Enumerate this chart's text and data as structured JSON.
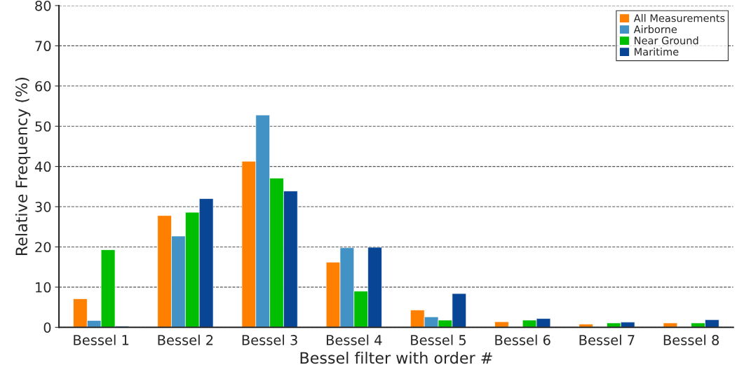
{
  "chart_data": {
    "type": "bar",
    "xlabel": "Bessel filter with order #",
    "ylabel": "Relative Frequency (%)",
    "categories": [
      "Bessel 1",
      "Bessel 2",
      "Bessel 3",
      "Bessel 4",
      "Bessel 5",
      "Bessel 6",
      "Bessel 7",
      "Bessel 8"
    ],
    "series": [
      {
        "name": "All Measurements",
        "color": "#ff8000",
        "values": [
          7.1,
          27.8,
          41.3,
          16.2,
          4.3,
          1.4,
          0.8,
          1.1
        ]
      },
      {
        "name": "Airborne",
        "color": "#4292c6",
        "values": [
          1.7,
          22.7,
          52.8,
          19.8,
          2.6,
          null,
          null,
          null
        ]
      },
      {
        "name": "Near Ground",
        "color": "#00bf00",
        "values": [
          19.3,
          28.6,
          37.1,
          9.0,
          1.8,
          1.8,
          1.1,
          1.1
        ]
      },
      {
        "name": "Maritime",
        "color": "#084594",
        "values": [
          0.3,
          32.0,
          33.9,
          19.9,
          8.4,
          2.2,
          1.3,
          1.9
        ]
      }
    ],
    "ylim": [
      0,
      80
    ],
    "yticks": [
      0,
      10,
      20,
      30,
      40,
      50,
      60,
      70,
      80
    ],
    "grid": "y",
    "legend": "top right"
  }
}
